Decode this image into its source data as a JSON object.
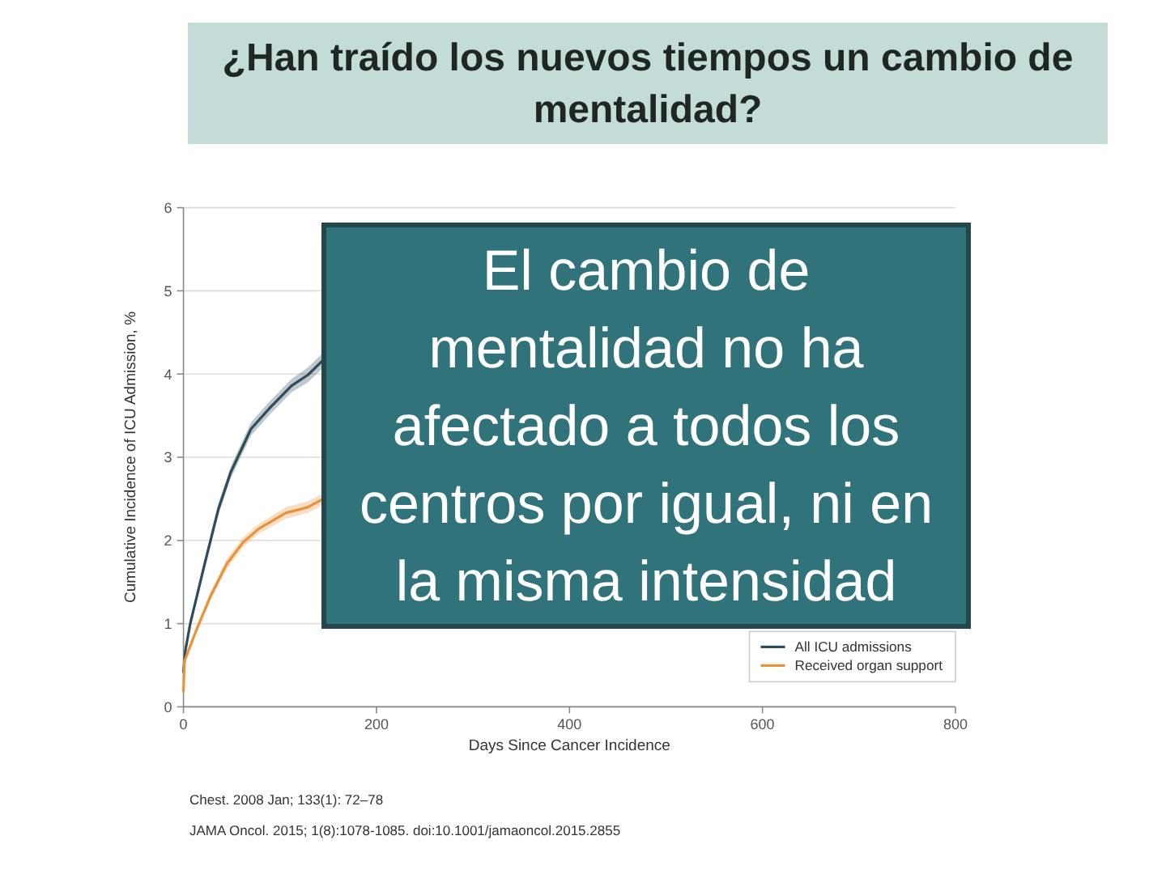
{
  "chart_data": {
    "type": "line",
    "title": "¿Han traído los nuevos tiempos un cambio de mentalidad?",
    "xlabel": "Days Since Cancer Incidence",
    "ylabel": "Cumulative Incidence of ICU Admission, %",
    "xlim": [
      0,
      800
    ],
    "xticks": [
      0,
      200,
      400,
      600,
      800
    ],
    "ylim": [
      0,
      6
    ],
    "yticks": [
      0,
      1,
      2,
      3,
      4,
      5,
      6
    ],
    "grid": "y",
    "legend": "bottom right",
    "series": [
      {
        "name": "All ICU admissions",
        "color": "#2f4b5c",
        "x": [
          0,
          2,
          7,
          22,
          36,
          49,
          70,
          90,
          112,
          129,
          145
        ],
        "values": [
          0.42,
          0.68,
          1.0,
          1.72,
          2.37,
          2.82,
          3.34,
          3.6,
          3.86,
          3.99,
          4.17
        ],
        "lower": [
          0.4,
          0.64,
          0.95,
          1.66,
          2.3,
          2.75,
          3.26,
          3.52,
          3.78,
          3.9,
          4.08
        ],
        "upper": [
          0.44,
          0.72,
          1.05,
          1.78,
          2.44,
          2.89,
          3.42,
          3.68,
          3.94,
          4.08,
          4.26
        ]
      },
      {
        "name": "Received organ support",
        "color": "#e8923a",
        "x": [
          0,
          1,
          14,
          28,
          45,
          62,
          78,
          106,
          129,
          145
        ],
        "values": [
          0.19,
          0.55,
          0.94,
          1.33,
          1.72,
          1.98,
          2.14,
          2.33,
          2.4,
          2.5
        ],
        "lower": [
          0.17,
          0.52,
          0.9,
          1.28,
          1.66,
          1.92,
          2.08,
          2.26,
          2.33,
          2.43
        ],
        "upper": [
          0.21,
          0.58,
          0.98,
          1.38,
          1.78,
          2.04,
          2.2,
          2.4,
          2.47,
          2.57
        ]
      }
    ],
    "annotations": [
      "El cambio de mentalidad no ha afectado a todos los centros por igual, ni en la misma intensidad",
      "Chest. 2008 Jan; 133(1): 72–78",
      "JAMA Oncol. 2015; 1(8):1078-1085. doi:10.1001/jamaoncol.2015.2855"
    ]
  }
}
